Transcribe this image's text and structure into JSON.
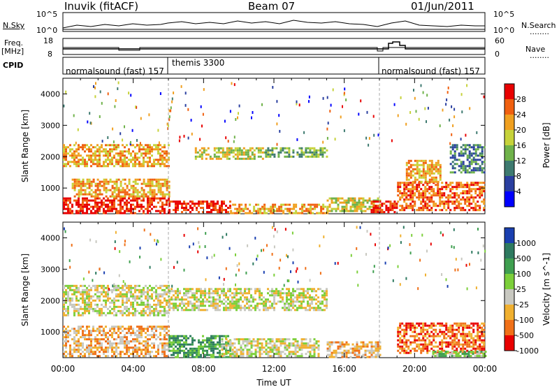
{
  "header": {
    "station": "Inuvik (fitACF)",
    "beam": "Beam 07",
    "date": "01/Jun/2011"
  },
  "side_labels": {
    "nsky": "N.Sky",
    "freq": "Freq.",
    "freq_unit": "[MHz]",
    "cpid": "CPID",
    "nsearch": "N.Search",
    "nave": "Nave",
    "dots": "........"
  },
  "noise_axis": {
    "top": "10^5",
    "bottom": "10^0"
  },
  "freq_axis": {
    "left_top": "18",
    "left_bottom": "8",
    "right_top": "60",
    "right_bottom": "0"
  },
  "cpid_programs": [
    {
      "label": "normalsound (fast) 157",
      "start_h": 0
    },
    {
      "label": "themis 3300",
      "start_h": 6
    },
    {
      "label": "normalsound (fast) 157",
      "start_h": 18
    }
  ],
  "chart_data": [
    {
      "type": "heatmap",
      "panel": "power",
      "xlabel": "",
      "ylabel": "Slant Range [km]",
      "xlim": [
        0,
        24
      ],
      "ylim": [
        180,
        4500
      ],
      "yticks": [
        1000,
        2000,
        3000,
        4000
      ],
      "colorbar": {
        "label": "Power [dB]",
        "ticks": [
          "4",
          "8",
          "12",
          "16",
          "20",
          "24",
          "28"
        ],
        "colors": [
          "#0000ff",
          "#2a3fa0",
          "#3e7a70",
          "#6fb24a",
          "#c6d23a",
          "#f0a020",
          "#f06010",
          "#e80000"
        ]
      },
      "echo_regions": [
        {
          "t0": 0.0,
          "t1": 6.0,
          "r0": 200,
          "r1": 700,
          "level": 7
        },
        {
          "t0": 0.5,
          "t1": 6.0,
          "r0": 700,
          "r1": 1300,
          "level": 5
        },
        {
          "t0": 0.0,
          "t1": 6.0,
          "r0": 1700,
          "r1": 2400,
          "level": 5
        },
        {
          "t0": 6.0,
          "t1": 9.5,
          "r0": 200,
          "r1": 600,
          "level": 7
        },
        {
          "t0": 7.5,
          "t1": 11.5,
          "r0": 1900,
          "r1": 2300,
          "level": 4
        },
        {
          "t0": 9.5,
          "t1": 15.0,
          "r0": 200,
          "r1": 500,
          "level": 5
        },
        {
          "t0": 11.5,
          "t1": 15.0,
          "r0": 2000,
          "r1": 2300,
          "level": 3
        },
        {
          "t0": 15.0,
          "t1": 18.0,
          "r0": 250,
          "r1": 700,
          "level": 4
        },
        {
          "t0": 17.5,
          "t1": 19.0,
          "r0": 200,
          "r1": 600,
          "level": 7
        },
        {
          "t0": 19.0,
          "t1": 24.0,
          "r0": 300,
          "r1": 1200,
          "level": 6
        },
        {
          "t0": 19.5,
          "t1": 21.5,
          "r0": 1200,
          "r1": 1900,
          "level": 5
        },
        {
          "t0": 22.0,
          "t1": 24.0,
          "r0": 1500,
          "r1": 2400,
          "level": 2
        }
      ]
    },
    {
      "type": "heatmap",
      "panel": "velocity",
      "xlabel": "Time UT",
      "ylabel": "Slant Range [km]",
      "xlim": [
        0,
        24
      ],
      "ylim": [
        180,
        4500
      ],
      "yticks": [
        1000,
        2000,
        3000,
        4000
      ],
      "xticks": [
        "00:00",
        "04:00",
        "08:00",
        "12:00",
        "16:00",
        "20:00",
        "00:00"
      ],
      "colorbar": {
        "label": "Velocity [m s^-1]",
        "ticks": [
          "1000",
          "500",
          "100",
          "25",
          "-25",
          "-100",
          "-500",
          "-1000"
        ],
        "colors": [
          "#1a3fb0",
          "#2e7a60",
          "#3f9f50",
          "#7ccf3a",
          "#c8c8c0",
          "#f0b030",
          "#f07018",
          "#e80000"
        ]
      },
      "echo_regions": [
        {
          "t0": 0.0,
          "t1": 6.0,
          "r0": 200,
          "r1": 1200,
          "level": 5
        },
        {
          "t0": 0.0,
          "t1": 6.0,
          "r0": 1500,
          "r1": 2500,
          "level": 4
        },
        {
          "t0": 6.0,
          "t1": 9.5,
          "r0": 200,
          "r1": 900,
          "level": 2
        },
        {
          "t0": 6.0,
          "t1": 15.0,
          "r0": 1700,
          "r1": 2400,
          "level": 4
        },
        {
          "t0": 9.0,
          "t1": 14.5,
          "r0": 200,
          "r1": 800,
          "level": 4
        },
        {
          "t0": 15.0,
          "t1": 18.0,
          "r0": 200,
          "r1": 700,
          "level": 5
        },
        {
          "t0": 19.0,
          "t1": 24.0,
          "r0": 300,
          "r1": 1300,
          "level": 6
        },
        {
          "t0": 21.0,
          "t1": 24.0,
          "r0": 200,
          "r1": 400,
          "level": 3
        }
      ]
    }
  ]
}
